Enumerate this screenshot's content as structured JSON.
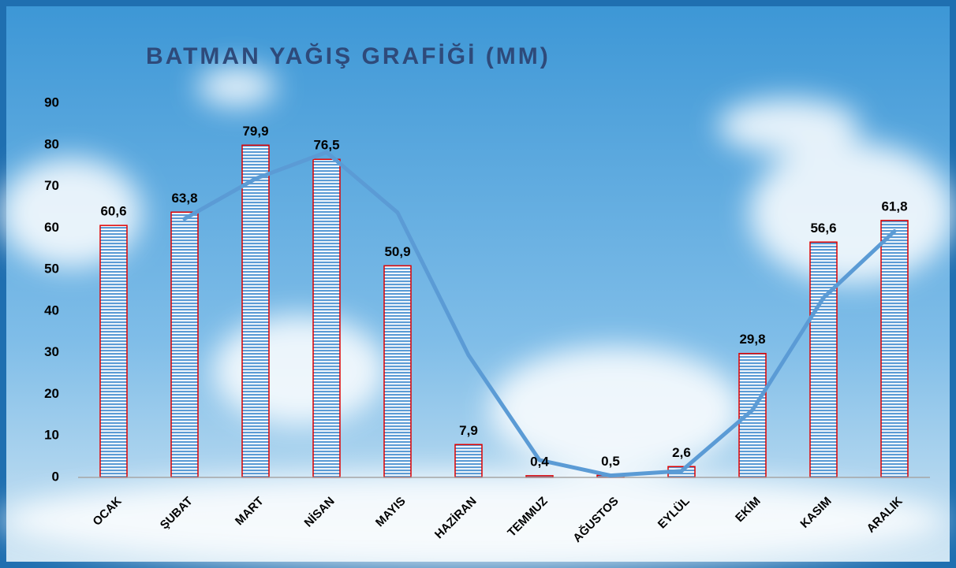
{
  "chart_data": {
    "type": "bar",
    "title": "BATMAN YAĞIŞ GRAFİĞİ (MM)",
    "categories": [
      "OCAK",
      "ŞUBAT",
      "MART",
      "NİSAN",
      "MAYIS",
      "HAZİRAN",
      "TEMMUZ",
      "AĞUSTOS",
      "EYLÜL",
      "EKİM",
      "KASIM",
      "ARALIK"
    ],
    "values": [
      60.6,
      63.8,
      79.9,
      76.5,
      50.9,
      7.9,
      0.4,
      0.5,
      2.6,
      29.8,
      56.6,
      61.8
    ],
    "value_labels": [
      "60,6",
      "63,8",
      "79,9",
      "76,5",
      "50,9",
      "7,9",
      "0,4",
      "0,5",
      "2,6",
      "29,8",
      "56,6",
      "61,8"
    ],
    "color": "#5b9bd5",
    "edge_color": "#e00000",
    "trendline": {
      "color": "#5b9bd5",
      "values": [
        null,
        62.2,
        71.85,
        78.2,
        63.7,
        29.4,
        4.15,
        0.45,
        1.55,
        16.2,
        43.2,
        59.2
      ]
    },
    "ylim": [
      0,
      90
    ],
    "yticks": [
      0,
      10,
      20,
      30,
      40,
      50,
      60,
      70,
      80,
      90
    ],
    "grid": false
  }
}
